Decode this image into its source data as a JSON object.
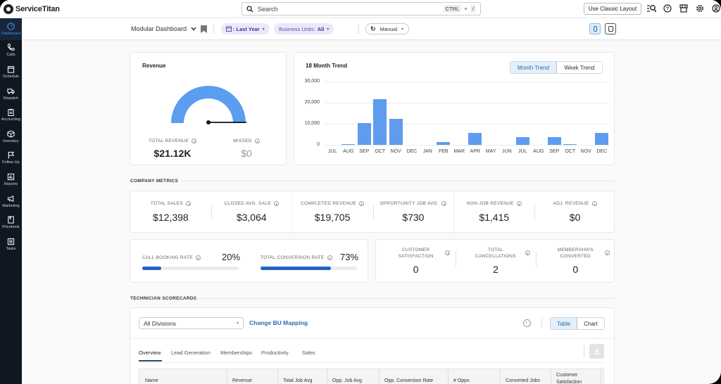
{
  "app": {
    "name": "ServiceTitan"
  },
  "topbar": {
    "search_placeholder": "Search",
    "shortcut_key1": "CTRL",
    "shortcut_plus": "+",
    "shortcut_key2": "/",
    "classic_button": "Use Classic Layout",
    "icons": [
      "search-list-icon",
      "help-icon",
      "store-icon",
      "settings-icon",
      "user-icon"
    ]
  },
  "sidebar": {
    "items": [
      {
        "label": "Dashboard",
        "icon": "dashboard-icon",
        "active": true
      },
      {
        "label": "Calls",
        "icon": "phone-icon"
      },
      {
        "label": "Schedule",
        "icon": "calendar-icon"
      },
      {
        "label": "Dispatch",
        "icon": "truck-icon"
      },
      {
        "label": "Accounting",
        "icon": "clipboard-icon"
      },
      {
        "label": "Inventory",
        "icon": "box-icon"
      },
      {
        "label": "Follow Up",
        "icon": "flag-icon"
      },
      {
        "label": "Reports",
        "icon": "report-icon"
      },
      {
        "label": "Marketing",
        "icon": "megaphone-icon"
      },
      {
        "label": "Pricebook",
        "icon": "book-icon"
      },
      {
        "label": "Tasks",
        "icon": "tasks-icon"
      }
    ]
  },
  "subheader": {
    "dashboard_name": "Modular Dashboard",
    "date_filter_prefix": ":",
    "date_filter": "Last Year",
    "bu_filter_label": "Business Units:",
    "bu_filter_value": "All",
    "refresh_mode": "Manual"
  },
  "revenue": {
    "title": "Revenue",
    "total_label": "TOTAL REVENUE",
    "total_value": "$21.12K",
    "missed_label": "MISSED",
    "missed_value": "$0",
    "gauge_color": "#5b9df0"
  },
  "trend": {
    "title": "18 Month Trend",
    "toggle": [
      "Month Trend",
      "Week Trend"
    ],
    "active_toggle": "Month Trend"
  },
  "chart_data": {
    "type": "bar",
    "title": "18 Month Trend",
    "categories": [
      "JUL",
      "AUG",
      "SEP",
      "OCT",
      "NOV",
      "DEC",
      "JAN",
      "FEB",
      "MAR",
      "APR",
      "MAY",
      "JUN",
      "JUL",
      "AUG",
      "SEP",
      "OCT",
      "NOV",
      "DEC"
    ],
    "values": [
      0,
      400,
      10300,
      21700,
      12300,
      0,
      0,
      1500,
      0,
      5800,
      0,
      0,
      3600,
      0,
      3600,
      200,
      0,
      5700
    ],
    "yticks": [
      "30,000",
      "20,000",
      "10,000",
      "0"
    ],
    "ylim": [
      0,
      30000
    ],
    "xlabel": "",
    "ylabel": "",
    "grid": true,
    "bar_color": "#5f9cf0"
  },
  "company_metrics": {
    "section_title": "COMPANY METRICS",
    "row1": [
      {
        "label": "TOTAL SALES",
        "value": "$12,398"
      },
      {
        "label": "CLOSED AVG. SALE",
        "value": "$3,064"
      },
      {
        "label": "COMPLETED REVENUE",
        "value": "$19,705"
      },
      {
        "label": "OPPORTUNITY JOB AVG.",
        "value": "$730"
      },
      {
        "label": "NON-JOB REVENUE",
        "value": "$1,415"
      },
      {
        "label": "ADJ. REVENUE",
        "value": "$0"
      }
    ],
    "rates": [
      {
        "label": "CALL BOOKING RATE",
        "value": "20%",
        "percent": 20
      },
      {
        "label": "TOTAL CONVERSION RATE",
        "value": "73%",
        "percent": 73
      }
    ],
    "row2": [
      {
        "label": "CUSTOMER SATISFACTION",
        "value": "0"
      },
      {
        "label": "TOTAL CANCELLATIONS",
        "value": "2"
      },
      {
        "label": "MEMBERSHIPS CONVERTED",
        "value": "0"
      }
    ]
  },
  "scorecards": {
    "section_title": "TECHNICIAN SCORECARDS",
    "division_select": "All Divisions",
    "change_bu_link": "Change BU Mapping",
    "view_toggle": [
      "Table",
      "Chart"
    ],
    "active_view": "Table",
    "tabs": [
      "Overview",
      "Lead Generation",
      "Memberships",
      "Productivity",
      "Sales"
    ],
    "active_tab": "Overview",
    "columns": [
      "Name",
      "Revenue",
      "Total Job Avg",
      "Opp. Job Avg",
      "Opp. Conversion Rate",
      "# Opps",
      "Converted Jobs",
      "Customer Satisfaction"
    ]
  }
}
